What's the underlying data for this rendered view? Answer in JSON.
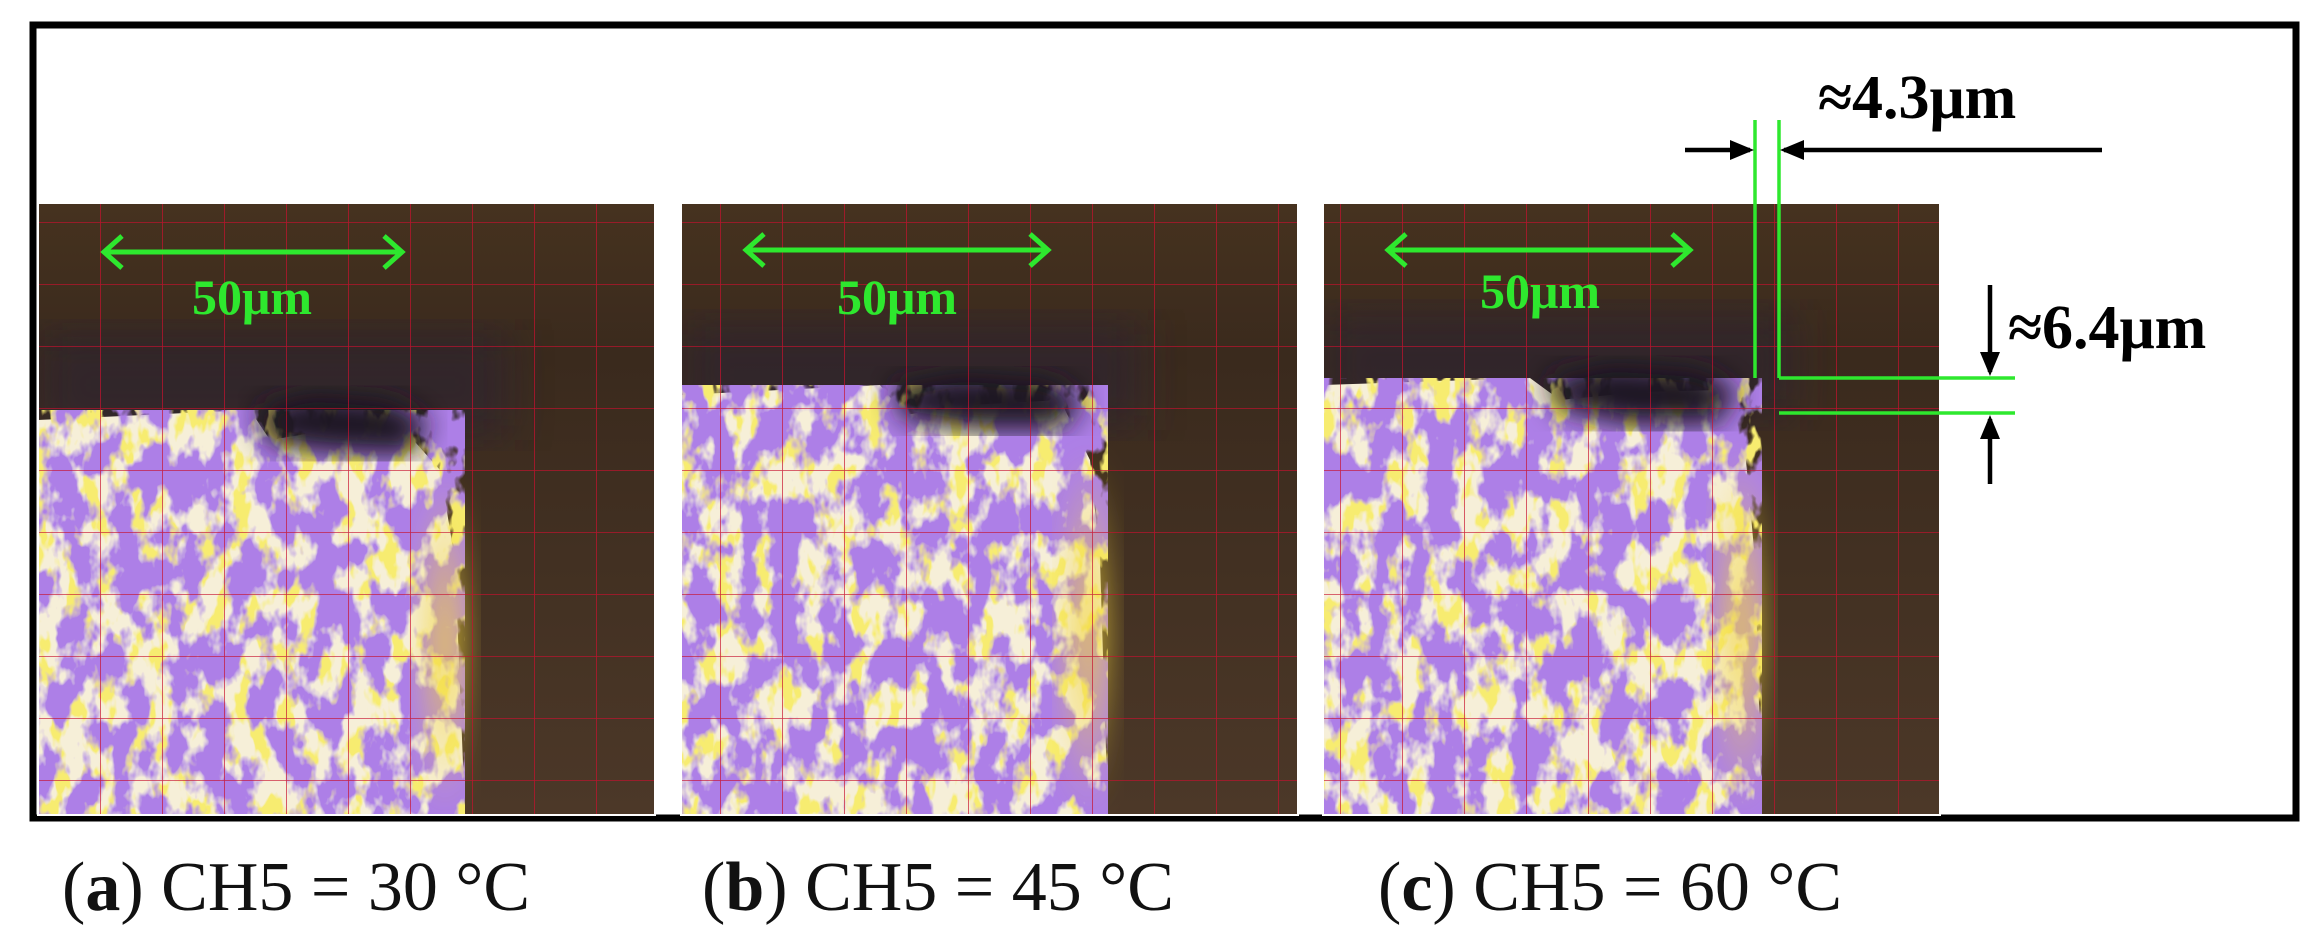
{
  "panels": [
    {
      "id": "a",
      "scale_bar_label": "50μm",
      "caption": {
        "open": "(",
        "letter": "a",
        "close": ")",
        "text": " CH5 = 30 °C"
      }
    },
    {
      "id": "b",
      "scale_bar_label": "50μm",
      "caption": {
        "open": "(",
        "letter": "b",
        "close": ")",
        "text": " CH5 = 45 °C"
      }
    },
    {
      "id": "c",
      "scale_bar_label": "50μm",
      "caption": {
        "open": "(",
        "letter": "c",
        "close": ")",
        "text": " CH5 = 60 °C"
      }
    }
  ],
  "annotations": {
    "horizontal_gap": "≈4.3μm",
    "vertical_gap": "≈6.4μm"
  },
  "colors": {
    "frame": "#000000",
    "grid": "#c8102e",
    "scale_bar": "#2ee82e",
    "background_dark": "#4a3526",
    "specimen_light": "#f6efd8",
    "specimen_purple": "#6a35c8",
    "specimen_yellow": "#e8d62a"
  }
}
